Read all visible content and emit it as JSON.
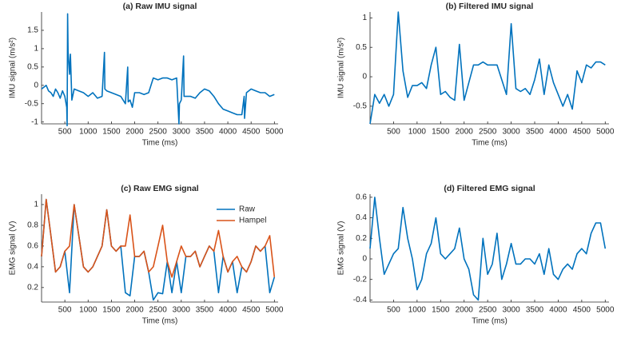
{
  "chart_data": [
    {
      "type": "line",
      "title": "(a) Raw IMU signal",
      "xlabel": "Time (ms)",
      "ylabel": "IMU signal (m/s²)",
      "x": [
        0,
        50,
        100,
        150,
        200,
        250,
        300,
        350,
        400,
        450,
        500,
        540,
        550,
        560,
        570,
        600,
        620,
        650,
        700,
        800,
        900,
        1000,
        1100,
        1200,
        1300,
        1350,
        1360,
        1400,
        1500,
        1600,
        1700,
        1800,
        1850,
        1860,
        1900,
        1950,
        2000,
        2100,
        2200,
        2300,
        2400,
        2500,
        2600,
        2700,
        2800,
        2900,
        2950,
        2960,
        3000,
        3050,
        3060,
        3100,
        3200,
        3300,
        3400,
        3500,
        3600,
        3700,
        3800,
        3900,
        4000,
        4100,
        4200,
        4300,
        4350,
        4360,
        4400,
        4500,
        4600,
        4700,
        4800,
        4900,
        5000
      ],
      "series": [
        {
          "color": "#0072bd",
          "values": [
            -0.1,
            -0.05,
            0,
            -0.15,
            -0.2,
            -0.3,
            -0.1,
            -0.2,
            -0.35,
            -0.15,
            -0.3,
            -0.6,
            -1.1,
            1.95,
            0.9,
            0.3,
            0.85,
            -0.4,
            -0.1,
            -0.15,
            -0.2,
            -0.3,
            -0.2,
            -0.35,
            -0.3,
            0.9,
            -0.1,
            -0.15,
            -0.2,
            -0.25,
            -0.3,
            -0.5,
            0.5,
            -0.45,
            -0.4,
            -0.6,
            -0.2,
            -0.2,
            -0.25,
            -0.2,
            0.2,
            0.15,
            0.2,
            0.2,
            0.15,
            0.2,
            -1.05,
            -0.5,
            -0.4,
            0.8,
            -0.3,
            -0.3,
            -0.3,
            -0.35,
            -0.2,
            -0.1,
            -0.15,
            -0.3,
            -0.5,
            -0.65,
            -0.7,
            -0.75,
            -0.8,
            -0.8,
            -0.3,
            -0.9,
            -0.2,
            -0.1,
            -0.15,
            -0.2,
            -0.2,
            -0.3,
            -0.25
          ]
        }
      ],
      "xlim": [
        0,
        5080
      ],
      "ylim": [
        -1.05,
        2.0
      ],
      "xticks": [
        500,
        1000,
        1500,
        2000,
        2500,
        3000,
        3500,
        4000,
        4500,
        5000
      ],
      "yticks": [
        -1,
        -0.5,
        0,
        0.5,
        1,
        1.5
      ]
    },
    {
      "type": "line",
      "title": "(b) Filtered IMU signal",
      "xlabel": "Time (ms)",
      "ylabel": "IMU signal (m/s²)",
      "x": [
        0,
        100,
        200,
        300,
        400,
        500,
        600,
        700,
        800,
        900,
        1000,
        1100,
        1200,
        1300,
        1400,
        1500,
        1600,
        1700,
        1800,
        1900,
        2000,
        2100,
        2200,
        2300,
        2400,
        2500,
        2600,
        2700,
        2800,
        2900,
        3000,
        3100,
        3200,
        3300,
        3400,
        3500,
        3600,
        3700,
        3800,
        3900,
        4000,
        4100,
        4200,
        4300,
        4400,
        4500,
        4600,
        4700,
        4800,
        4900,
        5000
      ],
      "series": [
        {
          "color": "#0072bd",
          "values": [
            -0.8,
            -0.3,
            -0.45,
            -0.3,
            -0.5,
            -0.3,
            1.1,
            0.1,
            -0.35,
            -0.15,
            -0.15,
            -0.1,
            -0.2,
            0.2,
            0.5,
            -0.3,
            -0.25,
            -0.35,
            -0.4,
            0.55,
            -0.4,
            -0.1,
            0.2,
            0.2,
            0.25,
            0.2,
            0.2,
            0.2,
            -0.05,
            -0.3,
            0.9,
            -0.2,
            -0.25,
            -0.2,
            -0.3,
            -0.05,
            0.3,
            -0.3,
            0.2,
            -0.1,
            -0.3,
            -0.5,
            -0.3,
            -0.55,
            0.1,
            -0.1,
            0.2,
            0.15,
            0.25,
            0.25,
            0.2
          ]
        }
      ],
      "xlim": [
        0,
        5080
      ],
      "ylim": [
        -0.8,
        1.1
      ],
      "xticks": [
        500,
        1000,
        1500,
        2000,
        2500,
        3000,
        3500,
        4000,
        4500,
        5000
      ],
      "yticks": [
        -0.5,
        0,
        0.5,
        1
      ]
    },
    {
      "type": "line",
      "title": "(c) Raw EMG signal",
      "xlabel": "Time (ms)",
      "ylabel": "EMG signal (V)",
      "legend": "top-right",
      "x": [
        0,
        100,
        200,
        300,
        400,
        500,
        600,
        700,
        800,
        900,
        1000,
        1100,
        1200,
        1300,
        1400,
        1500,
        1600,
        1700,
        1800,
        1900,
        2000,
        2100,
        2200,
        2300,
        2400,
        2500,
        2600,
        2700,
        2800,
        2900,
        3000,
        3100,
        3200,
        3300,
        3400,
        3500,
        3600,
        3700,
        3800,
        3900,
        4000,
        4100,
        4200,
        4300,
        4400,
        4500,
        4600,
        4700,
        4800,
        4900,
        5000
      ],
      "series": [
        {
          "name": "Raw",
          "color": "#0072bd",
          "values": [
            0.5,
            1.05,
            0.7,
            0.35,
            0.4,
            0.55,
            0.15,
            1.0,
            0.7,
            0.4,
            0.35,
            0.4,
            0.5,
            0.6,
            0.95,
            0.6,
            0.55,
            0.6,
            0.15,
            0.12,
            0.5,
            0.5,
            0.55,
            0.35,
            0.08,
            0.15,
            0.14,
            0.45,
            0.15,
            0.45,
            0.15,
            0.5,
            0.5,
            0.55,
            0.4,
            0.5,
            0.6,
            0.55,
            0.15,
            0.5,
            0.35,
            0.45,
            0.15,
            0.4,
            0.35,
            0.45,
            0.6,
            0.55,
            0.6,
            0.15,
            0.3
          ]
        },
        {
          "name": "Hampel",
          "color": "#d95319",
          "values": [
            0.5,
            1.05,
            0.7,
            0.35,
            0.4,
            0.55,
            0.6,
            1.0,
            0.7,
            0.4,
            0.35,
            0.4,
            0.5,
            0.6,
            0.95,
            0.6,
            0.55,
            0.6,
            0.6,
            0.9,
            0.5,
            0.5,
            0.55,
            0.35,
            0.4,
            0.6,
            0.8,
            0.45,
            0.3,
            0.45,
            0.6,
            0.5,
            0.5,
            0.55,
            0.4,
            0.5,
            0.6,
            0.55,
            0.75,
            0.5,
            0.35,
            0.45,
            0.5,
            0.4,
            0.35,
            0.45,
            0.6,
            0.55,
            0.6,
            0.7,
            0.3
          ]
        }
      ],
      "xlim": [
        0,
        5080
      ],
      "ylim": [
        0.06,
        1.1
      ],
      "xticks": [
        500,
        1000,
        1500,
        2000,
        2500,
        3000,
        3500,
        4000,
        4500,
        5000
      ],
      "yticks": [
        0.2,
        0.4,
        0.6,
        0.8,
        1
      ]
    },
    {
      "type": "line",
      "title": "(d) Filtered EMG signal",
      "xlabel": "Time (ms)",
      "ylabel": "EMG signal (V)",
      "x": [
        0,
        100,
        200,
        300,
        400,
        500,
        600,
        700,
        800,
        900,
        1000,
        1100,
        1200,
        1300,
        1400,
        1500,
        1600,
        1700,
        1800,
        1900,
        2000,
        2100,
        2200,
        2300,
        2400,
        2500,
        2600,
        2700,
        2800,
        2900,
        3000,
        3100,
        3200,
        3300,
        3400,
        3500,
        3600,
        3700,
        3800,
        3900,
        4000,
        4100,
        4200,
        4300,
        4400,
        4500,
        4600,
        4700,
        4800,
        4900,
        5000
      ],
      "series": [
        {
          "color": "#0072bd",
          "values": [
            0.1,
            0.6,
            0.2,
            -0.15,
            -0.05,
            0.05,
            0.1,
            0.5,
            0.2,
            0,
            -0.3,
            -0.2,
            0.05,
            0.15,
            0.4,
            0.05,
            0,
            0.05,
            0.1,
            0.3,
            0,
            -0.1,
            -0.35,
            -0.4,
            0.2,
            -0.15,
            -0.05,
            0.25,
            -0.2,
            -0.05,
            0.15,
            -0.05,
            -0.05,
            0,
            0,
            -0.05,
            0.05,
            -0.15,
            0.1,
            -0.15,
            -0.2,
            -0.1,
            -0.05,
            -0.1,
            0.05,
            0.1,
            0.05,
            0.25,
            0.35,
            0.35,
            0.1
          ]
        }
      ],
      "xlim": [
        0,
        5080
      ],
      "ylim": [
        -0.42,
        0.63
      ],
      "xticks": [
        500,
        1000,
        1500,
        2000,
        2500,
        3000,
        3500,
        4000,
        4500,
        5000
      ],
      "yticks": [
        -0.4,
        -0.2,
        0,
        0.2,
        0.4,
        0.6
      ]
    }
  ]
}
